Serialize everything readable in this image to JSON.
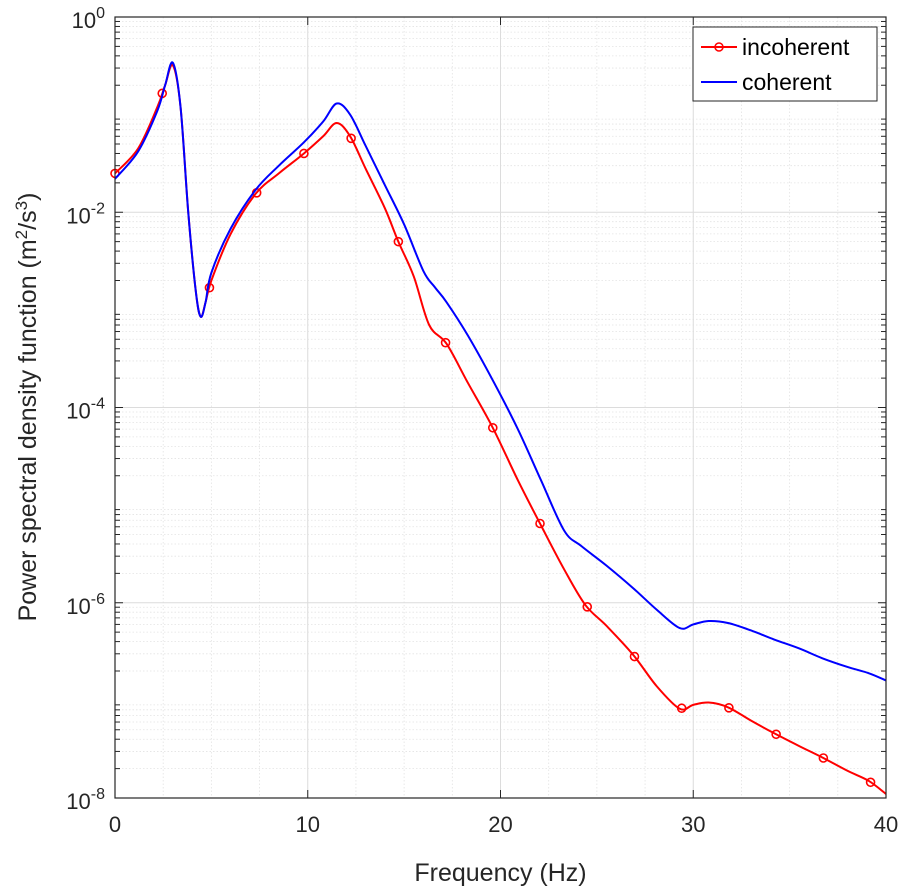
{
  "chart_data": {
    "type": "line",
    "title": "",
    "xlabel": "Frequency (Hz)",
    "ylabel_main": "Power spectral density function (m",
    "ylabel_sup1": "2",
    "ylabel_mid": "/s",
    "ylabel_sup2": "3",
    "ylabel_end": ")",
    "xlim": [
      0,
      40
    ],
    "ylim": [
      1e-08,
      1
    ],
    "yscale": "log",
    "grid": true,
    "legend_position": "top-right",
    "x_ticks": [
      0,
      10,
      20,
      30,
      40
    ],
    "x_tick_labels": [
      "0",
      "10",
      "20",
      "30",
      "40"
    ],
    "y_ticks": [
      {
        "value": 1e-08,
        "base": "10",
        "exp": "-8"
      },
      {
        "value": 1e-06,
        "base": "10",
        "exp": "-6"
      },
      {
        "value": 0.0001,
        "base": "10",
        "exp": "-4"
      },
      {
        "value": 0.01,
        "base": "10",
        "exp": "-2"
      },
      {
        "value": 1,
        "base": "10",
        "exp": "0"
      }
    ],
    "series": [
      {
        "name": "incoherent",
        "color": "#ff0000",
        "marker": "circle",
        "x": [
          0,
          1.2,
          2.2,
          2.6,
          3.0,
          3.4,
          3.8,
          4.2,
          4.45,
          4.7,
          5.0,
          6.0,
          7.3,
          8.5,
          9.8,
          10.8,
          11.5,
          12.2,
          13.0,
          14.0,
          14.7,
          15.5,
          16.3,
          17.2,
          18.3,
          19.6,
          20.9,
          22.1,
          23.3,
          24.4,
          25.5,
          26.9,
          28.1,
          29.3,
          30.0,
          30.8,
          31.8,
          33.0,
          34.2,
          35.5,
          36.7,
          38.0,
          39.1,
          40.0
        ],
        "y": [
          0.025,
          0.045,
          0.12,
          0.2,
          0.32,
          0.12,
          0.01,
          0.0015,
          0.00085,
          0.0012,
          0.002,
          0.006,
          0.0155,
          0.025,
          0.04,
          0.06,
          0.082,
          0.06,
          0.028,
          0.011,
          0.005,
          0.0022,
          0.0007,
          0.00045,
          0.00018,
          6.2e-05,
          1.8e-05,
          6.2e-06,
          2.2e-06,
          9.5e-07,
          5.8e-07,
          2.9e-07,
          1.4e-07,
          8.2e-08,
          9e-08,
          9.5e-08,
          8.5e-08,
          6.2e-08,
          4.6e-08,
          3.4e-08,
          2.6e-08,
          1.9e-08,
          1.5e-08,
          1.1e-08
        ],
        "marker_x": [
          0,
          2.45,
          4.9,
          7.35,
          9.8,
          12.25,
          14.7,
          17.15,
          19.6,
          22.05,
          24.5,
          26.95,
          29.4,
          31.85,
          34.3,
          36.75,
          39.2
        ]
      },
      {
        "name": "coherent",
        "color": "#0000ff",
        "marker": "none",
        "x": [
          0,
          1.2,
          2.2,
          2.6,
          3.0,
          3.4,
          3.8,
          4.2,
          4.45,
          4.7,
          5.0,
          6.0,
          7.3,
          8.5,
          9.8,
          10.8,
          11.5,
          12.2,
          13.0,
          14.0,
          15.0,
          16.0,
          16.6,
          17.2,
          18.3,
          19.6,
          20.9,
          22.1,
          23.3,
          24.2,
          25.5,
          26.9,
          28.1,
          29.3,
          30.0,
          30.8,
          31.8,
          33.0,
          34.2,
          35.5,
          36.7,
          38.0,
          39.1,
          40.0
        ],
        "y": [
          0.022,
          0.042,
          0.11,
          0.2,
          0.34,
          0.12,
          0.01,
          0.0015,
          0.00085,
          0.0012,
          0.0024,
          0.0068,
          0.017,
          0.03,
          0.052,
          0.085,
          0.13,
          0.1,
          0.048,
          0.019,
          0.0075,
          0.0025,
          0.0017,
          0.0012,
          0.00055,
          0.00019,
          6e-05,
          1.8e-05,
          5.5e-06,
          3.8e-06,
          2.4e-06,
          1.4e-06,
          8.5e-07,
          5.5e-07,
          6e-07,
          6.5e-07,
          6.2e-07,
          5.2e-07,
          4.2e-07,
          3.4e-07,
          2.7e-07,
          2.2e-07,
          1.9e-07,
          1.6e-07
        ]
      }
    ]
  }
}
